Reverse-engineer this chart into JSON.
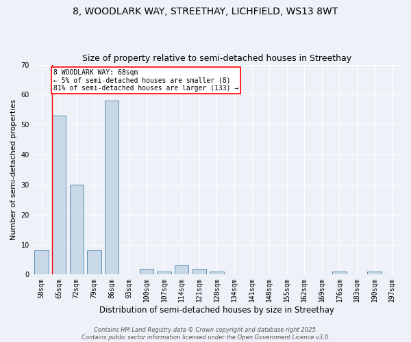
{
  "title1": "8, WOODLARK WAY, STREETHAY, LICHFIELD, WS13 8WT",
  "title2": "Size of property relative to semi-detached houses in Streethay",
  "xlabel": "Distribution of semi-detached houses by size in Streethay",
  "ylabel": "Number of semi-detached properties",
  "categories": [
    "58sqm",
    "65sqm",
    "72sqm",
    "79sqm",
    "86sqm",
    "93sqm",
    "100sqm",
    "107sqm",
    "114sqm",
    "121sqm",
    "128sqm",
    "134sqm",
    "141sqm",
    "148sqm",
    "155sqm",
    "162sqm",
    "169sqm",
    "176sqm",
    "183sqm",
    "190sqm",
    "197sqm"
  ],
  "values": [
    8,
    53,
    30,
    8,
    58,
    0,
    2,
    1,
    3,
    2,
    1,
    0,
    0,
    0,
    0,
    0,
    0,
    1,
    0,
    1,
    0
  ],
  "bar_color": "#c8d8e8",
  "bar_edge_color": "#5b8db0",
  "red_line_x": 0.6,
  "annotation_text": "8 WOODLARK WAY: 68sqm\n← 5% of semi-detached houses are smaller (8)\n81% of semi-detached houses are larger (133) →",
  "ylim": [
    0,
    70
  ],
  "yticks": [
    0,
    10,
    20,
    30,
    40,
    50,
    60,
    70
  ],
  "footer": "Contains HM Land Registry data © Crown copyright and database right 2025.\nContains public sector information licensed under the Open Government Licence v3.0.",
  "background_color": "#eef2f8",
  "grid_color": "white",
  "title_fontsize": 10,
  "subtitle_fontsize": 9,
  "tick_fontsize": 7,
  "ylabel_fontsize": 8,
  "xlabel_fontsize": 8.5,
  "footer_fontsize": 6,
  "annotation_fontsize": 7
}
